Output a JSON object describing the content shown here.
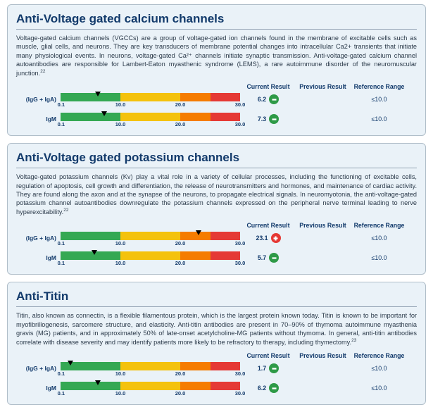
{
  "columns": {
    "current": "Current Result",
    "previous": "Previous Result",
    "reference": "Reference Range"
  },
  "bar": {
    "max": 30.0,
    "segments": [
      {
        "from": 0,
        "to": 10,
        "color": "#34a853"
      },
      {
        "from": 10,
        "to": 20,
        "color": "#f4c20d"
      },
      {
        "from": 20,
        "to": 25,
        "color": "#f57c00"
      },
      {
        "from": 25,
        "to": 30,
        "color": "#e53935"
      }
    ],
    "ticks": [
      "0.1",
      "10.0",
      "20.0",
      "30.0"
    ]
  },
  "panels": [
    {
      "id": "vgcc",
      "title": "Anti-Voltage gated calcium channels",
      "desc": "Voltage-gated calcium channels (VGCCs) are a group of voltage-gated ion channels found in the membrane of excitable cells such as muscle, glial cells, and neurons. They are key transducers of membrane potential changes into intracellular Ca2+ transients that initiate many physiological events. In neurons, voltage-gated Ca²⁺ channels initiate synaptic transmission. Anti-voltage-gated calcium channel autoantibodies are responsible for Lambert-Eaton myasthenic syndrome (LEMS), a rare autoimmune disorder of the neuromuscular junction.",
      "cite": "22",
      "rows": [
        {
          "label": "(IgG + IgA)",
          "value": 6.2,
          "vtext": "6.2",
          "status": "ok",
          "prev": "",
          "ref": "≤10.0"
        },
        {
          "label": "IgM",
          "value": 7.3,
          "vtext": "7.3",
          "status": "ok",
          "prev": "",
          "ref": "≤10.0"
        }
      ]
    },
    {
      "id": "vgkc",
      "title": "Anti-Voltage gated potassium channels",
      "desc": "Voltage-gated potassium channels (Kv) play a vital role in a variety of cellular processes, including the functioning of excitable cells, regulation of apoptosis, cell growth and differentiation, the release of neurotransmitters and hormones, and maintenance of cardiac activity.  They are found along the axon and at the synapse of the neurons, to propagate electrical signals. In neuromyotonia, the anti-voltage-gated potassium channel autoantibodies downregulate the potassium channels expressed on the peripheral nerve terminal leading to nerve hyperexcitability.",
      "cite": "22",
      "rows": [
        {
          "label": "(IgG + IgA)",
          "value": 23.1,
          "vtext": "23.1",
          "status": "bad",
          "prev": "",
          "ref": "≤10.0"
        },
        {
          "label": "IgM",
          "value": 5.7,
          "vtext": "5.7",
          "status": "ok",
          "prev": "",
          "ref": "≤10.0"
        }
      ]
    },
    {
      "id": "titin",
      "title": "Anti-Titin",
      "desc": "Titin, also known as connectin, is a flexible filamentous protein, which is the largest protein known today. Titin is known to be important for myofibrillogenesis, sarcomere structure, and elasticity. Anti-titin antibodies are present in 70–90% of thymoma autoimmune myasthenia gravis (MG) patients, and in approximately 50% of late-onset acetylcholine-MG patients without thymoma. In general, anti-titin antibodies correlate with disease severity and may identify patients more likely to be refractory to therapy, including thymectomy.",
      "cite": "23",
      "rows": [
        {
          "label": "(IgG + IgA)",
          "value": 1.7,
          "vtext": "1.7",
          "status": "ok",
          "prev": "",
          "ref": "≤10.0"
        },
        {
          "label": "IgM",
          "value": 6.2,
          "vtext": "6.2",
          "status": "ok",
          "prev": "",
          "ref": "≤10.0"
        }
      ]
    }
  ]
}
